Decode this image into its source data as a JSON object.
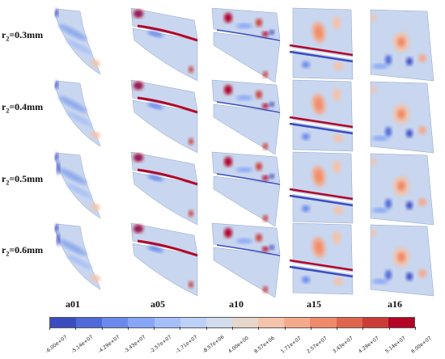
{
  "rows": [
    {
      "r": "r",
      "sub": "2",
      "eq": "=0.3mm"
    },
    {
      "r": "r",
      "sub": "2",
      "eq": "=0.4mm"
    },
    {
      "r": "r",
      "sub": "2",
      "eq": "=0.5mm"
    },
    {
      "r": "r",
      "sub": "2",
      "eq": "=0.6mm"
    }
  ],
  "columns": [
    "a01",
    "a05",
    "a10",
    "a15",
    "a16"
  ],
  "colorbar": {
    "colors": [
      "#3b4cc0",
      "#4f69d9",
      "#6b89ec",
      "#88a6f7",
      "#a5bff9",
      "#bcd0f8",
      "#d2dcef",
      "#e6d6cc",
      "#f3c3ab",
      "#f4a98b",
      "#ef8a6a",
      "#e0654e",
      "#cc3c36",
      "#b40426"
    ],
    "ticks": [
      "-6.00e+07",
      "-5.14e+07",
      "-4.29e+07",
      "-3.43e+07",
      "-2.57e+07",
      "-1.71e+07",
      "-8.57e+06",
      "4.00e+00",
      "8.57e+06",
      "1.71e+07",
      "2.57e+07",
      "3.43e+07",
      "4.29e+07",
      "5.14e+07",
      "6.00e+07"
    ]
  }
}
